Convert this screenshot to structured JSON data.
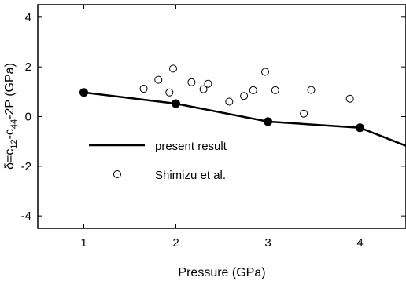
{
  "chart_data": {
    "type": "line",
    "xlabel": "Pressure (GPa)",
    "ylabel": {
      "parts": [
        "δ=c",
        "12",
        "-c",
        "44",
        "-2P (GPa)"
      ]
    },
    "xlim": [
      0.5,
      4.5
    ],
    "ylim": [
      -4.5,
      4.5
    ],
    "x_ticks": [
      1,
      2,
      3,
      4
    ],
    "y_ticks": [
      -4,
      -2,
      0,
      2,
      4
    ],
    "grid": false,
    "legend_position": "lower-left inside",
    "series": [
      {
        "name": "present result",
        "style": "solid-line-filled-markers",
        "x": [
          1,
          2,
          3,
          4,
          4.55
        ],
        "y": [
          0.97,
          0.52,
          -0.2,
          -0.45,
          -1.25
        ],
        "markers": [
          true,
          true,
          true,
          true,
          false
        ]
      },
      {
        "name": "Shimizu et al.",
        "style": "open-circles",
        "x": [
          1.65,
          1.81,
          1.93,
          1.97,
          2.17,
          2.3,
          2.35,
          2.58,
          2.74,
          2.84,
          2.97,
          3.08,
          3.39,
          3.47,
          3.89
        ],
        "y": [
          1.12,
          1.48,
          0.97,
          1.93,
          1.38,
          1.1,
          1.32,
          0.6,
          0.83,
          1.06,
          1.8,
          1.06,
          0.12,
          1.07,
          0.72
        ]
      }
    ]
  },
  "colors": {
    "line": "#000000",
    "marker_fill": "#000000",
    "open_marker_fill": "#ffffff",
    "axes": "#000000"
  }
}
